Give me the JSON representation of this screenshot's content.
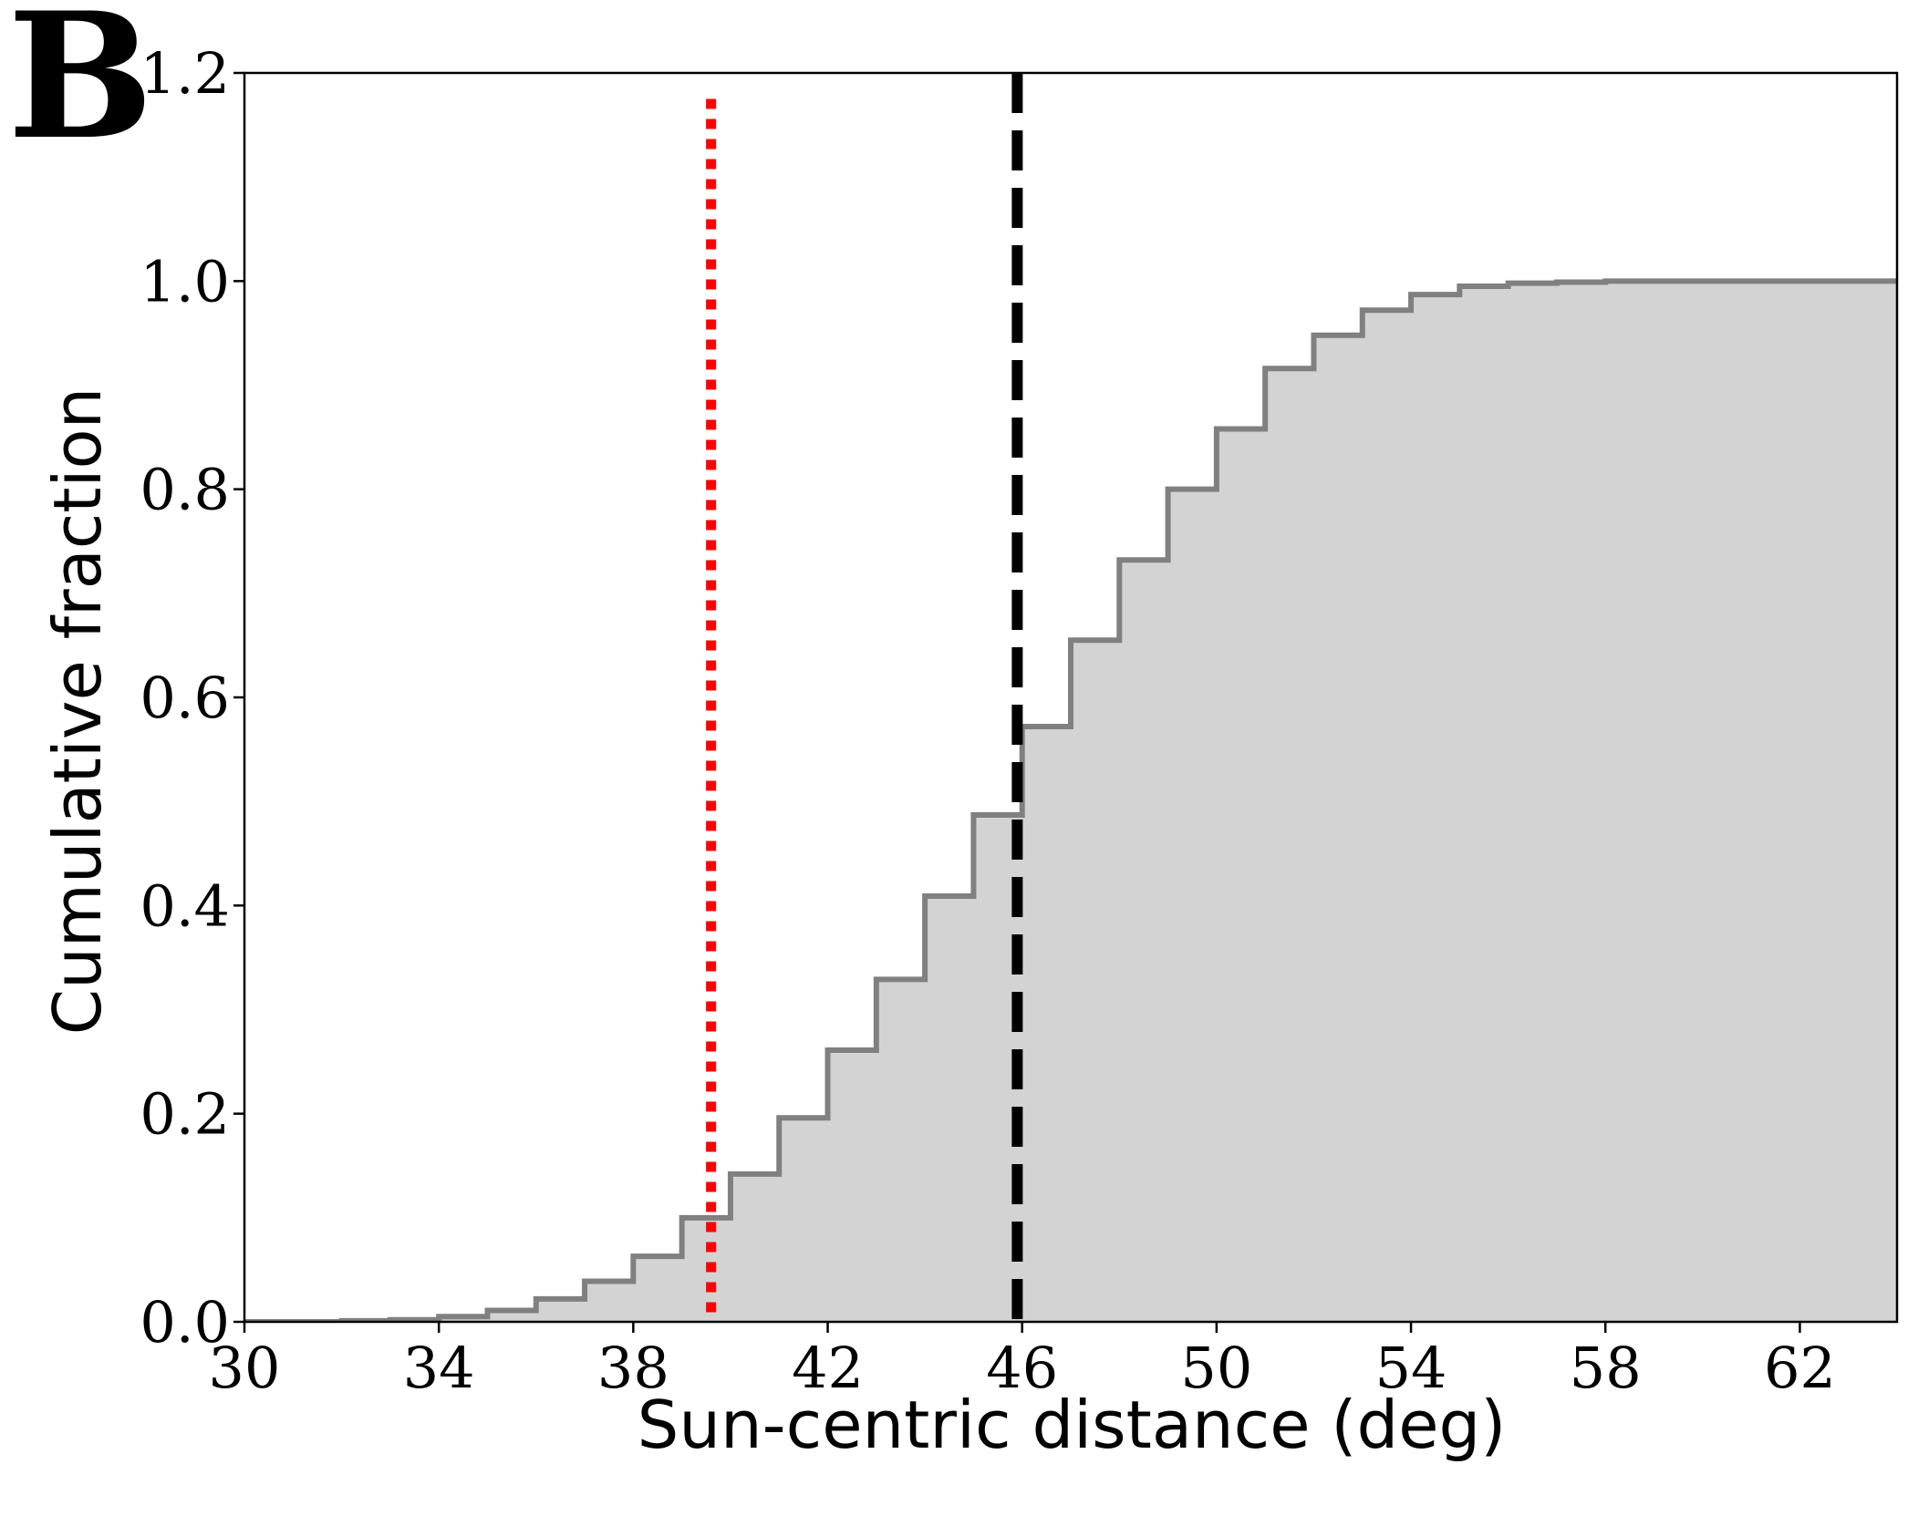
{
  "panel_label": "B",
  "chart_data": {
    "type": "area",
    "xlabel": "Sun-centric distance (deg)",
    "ylabel": "Cumulative fraction",
    "xlim": [
      30,
      64
    ],
    "ylim": [
      0,
      1.2
    ],
    "xticks": [
      "30",
      "34",
      "38",
      "42",
      "46",
      "50",
      "54",
      "58",
      "62"
    ],
    "xtick_values": [
      30,
      34,
      38,
      42,
      46,
      50,
      54,
      58,
      62
    ],
    "yticks": [
      "0.0",
      "0.2",
      "0.4",
      "0.6",
      "0.8",
      "1.0",
      "1.2"
    ],
    "ytick_values": [
      0.0,
      0.2,
      0.4,
      0.6,
      0.8,
      1.0,
      1.2
    ],
    "grid": false,
    "legend": "none",
    "series": [
      {
        "style": "cumulative step histogram",
        "bin_edges": [
          30,
          31,
          32,
          33,
          34,
          35,
          36,
          37,
          38,
          39,
          40,
          41,
          42,
          43,
          44,
          45,
          46,
          47,
          48,
          49,
          50,
          51,
          52,
          53,
          54,
          55,
          56,
          57,
          58,
          59,
          60,
          61,
          62,
          63,
          64
        ],
        "cumulative": [
          0.0,
          0.0,
          0.001,
          0.002,
          0.005,
          0.011,
          0.022,
          0.039,
          0.063,
          0.1,
          0.142,
          0.196,
          0.261,
          0.329,
          0.409,
          0.487,
          0.572,
          0.655,
          0.732,
          0.8,
          0.858,
          0.916,
          0.948,
          0.972,
          0.987,
          0.995,
          0.998,
          0.999,
          1.0,
          1.0,
          1.0,
          1.0,
          1.0,
          1.0
        ],
        "line_color": "#808080",
        "fill_color": "#d3d3d3"
      }
    ],
    "vlines": [
      {
        "x": 39.6,
        "style": "dotted",
        "color": "#ff0000"
      },
      {
        "x": 45.9,
        "style": "dashed",
        "color": "#000000"
      }
    ]
  }
}
